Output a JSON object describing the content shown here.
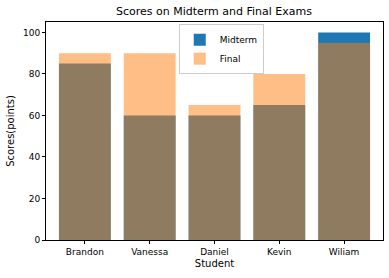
{
  "chart_data": {
    "type": "bar",
    "title": "Scores on Midterm and Final Exams",
    "x_label": "Student",
    "y_label": "Scores(points)",
    "categories": [
      "Brandon",
      "Vanessa",
      "Daniel",
      "Kevin",
      "Wiliam"
    ],
    "series": [
      {
        "name": "Midterm",
        "color": "#1f77b4",
        "values": [
          85,
          60,
          60,
          65,
          100
        ]
      },
      {
        "name": "Final",
        "color": "#ff7f0e",
        "values": [
          90,
          90,
          65,
          80,
          95
        ]
      }
    ],
    "ylim": [
      0,
      105
    ],
    "yticks": [
      0,
      20,
      40,
      60,
      80,
      100
    ],
    "grid": false,
    "legend": "top",
    "stacked": false
  }
}
